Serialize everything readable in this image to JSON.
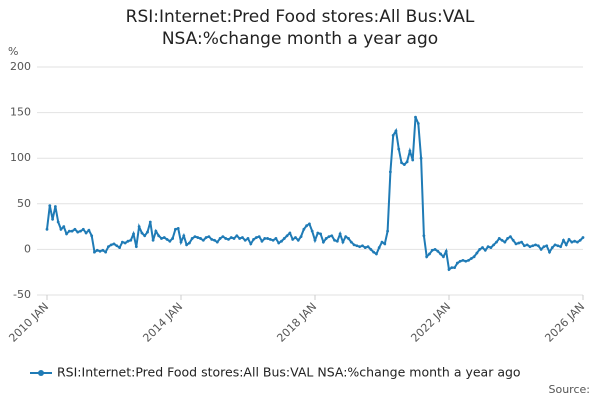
{
  "chart_data": {
    "type": "line",
    "title": "RSI:Internet:Pred Food stores:All Bus:VAL NSA:%change month a year ago",
    "y_label": "%",
    "source": "Source:",
    "categories": [
      "2010 JAN",
      null,
      null,
      null,
      null,
      null,
      null,
      null,
      null,
      null,
      null,
      null,
      null,
      null,
      null,
      null,
      null,
      null,
      null,
      null,
      null,
      null,
      null,
      null,
      null,
      null,
      null,
      null,
      null,
      null,
      null,
      null,
      null,
      null,
      null,
      null,
      null,
      null,
      null,
      null,
      null,
      null,
      null,
      null,
      null,
      null,
      null,
      null,
      "2014 JAN",
      null,
      null,
      null,
      null,
      null,
      null,
      null,
      null,
      null,
      null,
      null,
      null,
      null,
      null,
      null,
      null,
      null,
      null,
      null,
      null,
      null,
      null,
      null,
      null,
      null,
      null,
      null,
      null,
      null,
      null,
      null,
      null,
      null,
      null,
      null,
      null,
      null,
      null,
      null,
      null,
      null,
      null,
      null,
      null,
      null,
      null,
      null,
      "2018 JAN",
      null,
      null,
      null,
      null,
      null,
      null,
      null,
      null,
      null,
      null,
      null,
      null,
      null,
      null,
      null,
      null,
      null,
      null,
      null,
      null,
      null,
      null,
      null,
      null,
      null,
      null,
      null,
      null,
      null,
      null,
      null,
      null,
      null,
      null,
      null,
      null,
      null,
      null,
      null,
      null,
      null,
      null,
      null,
      null,
      null,
      null,
      null,
      "2022 JAN",
      null,
      null,
      null,
      null,
      null,
      null,
      null,
      null,
      null,
      null,
      null,
      null,
      null,
      null,
      null,
      null,
      null,
      null,
      null,
      null,
      null,
      null,
      null,
      null,
      null,
      null,
      null,
      null,
      null,
      null,
      null,
      null,
      null,
      null,
      null,
      null,
      null,
      null,
      null,
      null,
      null,
      null,
      null,
      null,
      null,
      null,
      null,
      "2026 JAN"
    ],
    "series": [
      {
        "name": "RSI:Internet:Pred Food stores:All Bus:VAL NSA:%change month a year ago",
        "color": "#1f7bb6",
        "values": [
          22,
          48,
          33,
          47,
          30,
          22,
          25,
          17,
          20,
          20,
          22,
          19,
          20,
          22,
          18,
          21,
          15,
          -3,
          -1,
          -2,
          -1,
          -3,
          3,
          5,
          6,
          4,
          2,
          8,
          7,
          9,
          10,
          17,
          3,
          25,
          18,
          15,
          19,
          30,
          10,
          20,
          15,
          12,
          13,
          11,
          9,
          12,
          22,
          23,
          8,
          15,
          5,
          7,
          12,
          14,
          13,
          12,
          10,
          13,
          14,
          11,
          10,
          8,
          12,
          14,
          12,
          11,
          13,
          12,
          15,
          12,
          13,
          10,
          12,
          6,
          11,
          13,
          14,
          9,
          12,
          12,
          11,
          10,
          12,
          7,
          9,
          12,
          15,
          18,
          11,
          13,
          10,
          14,
          22,
          26,
          28,
          20,
          10,
          18,
          17,
          8,
          12,
          14,
          15,
          10,
          9,
          17,
          8,
          14,
          12,
          8,
          5,
          4,
          3,
          4,
          2,
          3,
          0,
          -3,
          -5,
          2,
          8,
          6,
          20,
          85,
          125,
          130,
          110,
          95,
          93,
          96,
          108,
          98,
          145,
          138,
          100,
          15,
          -8,
          -5,
          -1,
          0,
          -2,
          -5,
          -8,
          -2,
          -22,
          -20,
          -20,
          -15,
          -13,
          -12,
          -13,
          -12,
          -10,
          -8,
          -4,
          0,
          2,
          -1,
          3,
          2,
          5,
          8,
          12,
          10,
          8,
          12,
          14,
          10,
          6,
          7,
          8,
          4,
          5,
          3,
          4,
          5,
          4,
          0,
          3,
          4,
          -3,
          2,
          5,
          4,
          3,
          10,
          5,
          11,
          8,
          9,
          8,
          10,
          13
        ]
      }
    ],
    "ylim": [
      -50,
      200
    ],
    "yticks": [
      -50,
      0,
      50,
      100,
      150,
      200
    ],
    "grid": true
  }
}
